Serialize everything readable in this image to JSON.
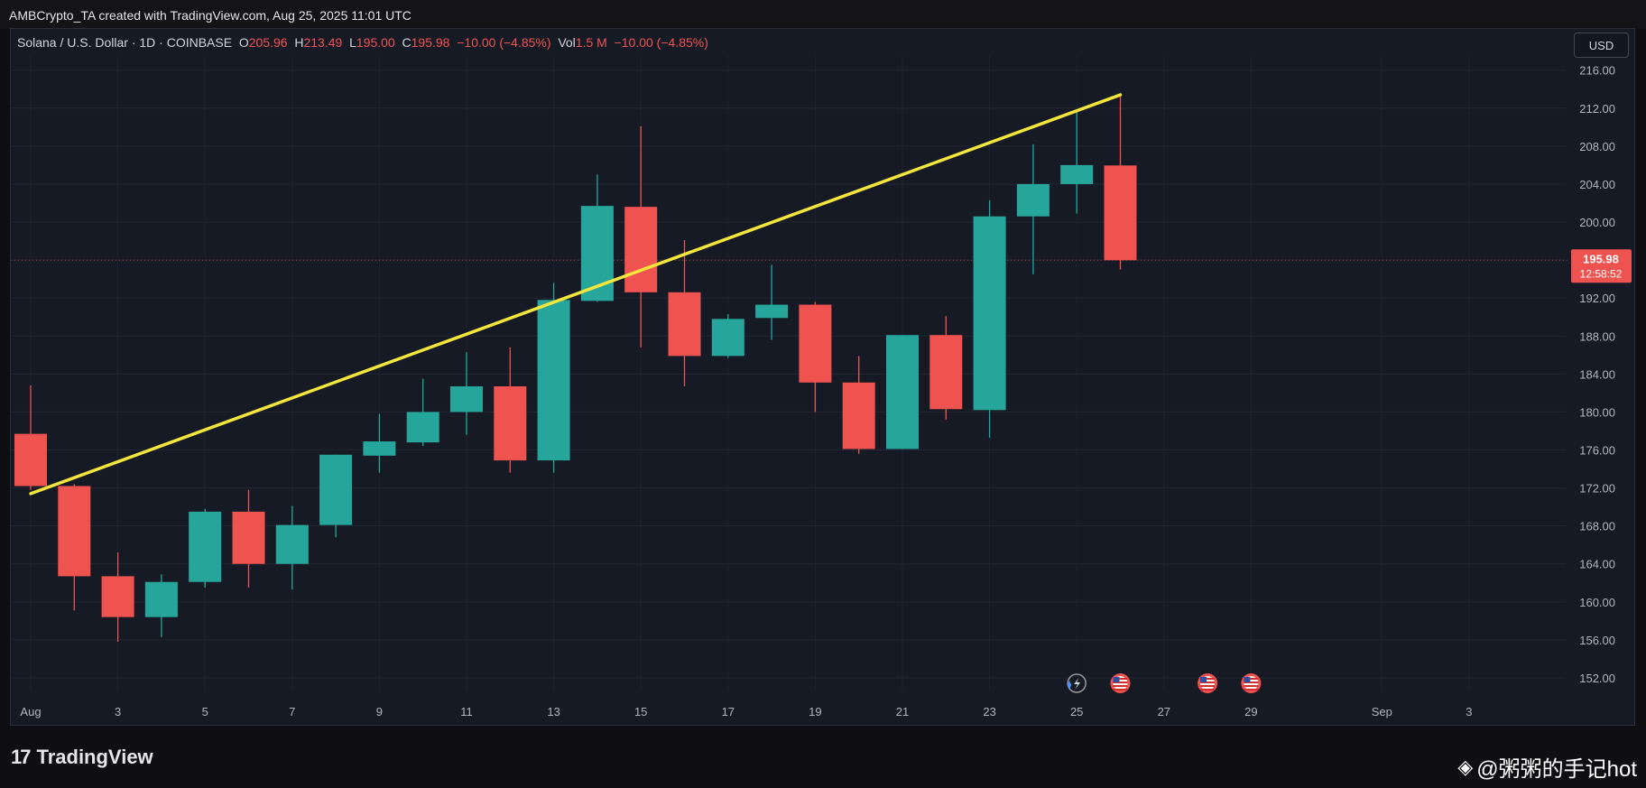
{
  "header": {
    "attribution": "AMBCrypto_TA created with TradingView.com, Aug 25, 2025 11:01 UTC"
  },
  "legend": {
    "symbol": "Solana / U.S. Dollar · 1D · COINBASE",
    "o_label": "O",
    "o_value": "205.96",
    "h_label": "H",
    "h_value": "213.49",
    "l_label": "L",
    "l_value": "195.00",
    "c_label": "C",
    "c_value": "195.98",
    "change": "−10.00 (−4.85%)",
    "vol_label": "Vol",
    "vol_value": "1.5 M",
    "vol_change": "−10.00 (−4.85%)"
  },
  "currency_button": "USD",
  "price_tag": {
    "price": "195.98",
    "countdown": "12:58:52"
  },
  "footer": {
    "brand": "TradingView",
    "watermark": "@粥粥的手记hot"
  },
  "colors": {
    "up": "#26a69a",
    "down": "#ef5350",
    "trendline": "#f5e63c",
    "background": "#161a25"
  },
  "chart_data": {
    "type": "candlestick",
    "ylim": [
      148,
      218
    ],
    "y_ticks": [
      "216.00",
      "212.00",
      "208.00",
      "204.00",
      "200.00",
      "196.00",
      "192.00",
      "188.00",
      "184.00",
      "180.00",
      "176.00",
      "172.00",
      "168.00",
      "164.00",
      "160.00",
      "156.00",
      "152.00"
    ],
    "x_ticks": [
      {
        "label": "Aug",
        "day": 0
      },
      {
        "label": "3",
        "day": 2
      },
      {
        "label": "5",
        "day": 4
      },
      {
        "label": "7",
        "day": 6
      },
      {
        "label": "9",
        "day": 8
      },
      {
        "label": "11",
        "day": 10
      },
      {
        "label": "13",
        "day": 12
      },
      {
        "label": "15",
        "day": 14
      },
      {
        "label": "17",
        "day": 16
      },
      {
        "label": "19",
        "day": 18
      },
      {
        "label": "21",
        "day": 20
      },
      {
        "label": "23",
        "day": 22
      },
      {
        "label": "25",
        "day": 24
      },
      {
        "label": "27",
        "day": 26
      },
      {
        "label": "29",
        "day": 28
      },
      {
        "label": "Sep",
        "day": 31
      },
      {
        "label": "3",
        "day": 33
      }
    ],
    "candles": [
      {
        "date": "Jul 31",
        "open": 177.7,
        "high": 182.8,
        "low": 171.8,
        "close": 172.2
      },
      {
        "date": "Aug 1",
        "open": 172.2,
        "high": 172.4,
        "low": 159.1,
        "close": 162.7
      },
      {
        "date": "Aug 2",
        "open": 162.7,
        "high": 165.2,
        "low": 155.8,
        "close": 158.4
      },
      {
        "date": "Aug 3",
        "open": 158.4,
        "high": 162.9,
        "low": 156.3,
        "close": 162.1
      },
      {
        "date": "Aug 4",
        "open": 162.1,
        "high": 169.8,
        "low": 161.5,
        "close": 169.5
      },
      {
        "date": "Aug 5",
        "open": 169.5,
        "high": 171.8,
        "low": 161.5,
        "close": 164.0
      },
      {
        "date": "Aug 6",
        "open": 164.0,
        "high": 170.1,
        "low": 161.3,
        "close": 168.1
      },
      {
        "date": "Aug 7",
        "open": 168.1,
        "high": 175.5,
        "low": 166.8,
        "close": 175.5
      },
      {
        "date": "Aug 8",
        "open": 175.4,
        "high": 179.8,
        "low": 173.6,
        "close": 176.9
      },
      {
        "date": "Aug 9",
        "open": 176.8,
        "high": 183.5,
        "low": 176.4,
        "close": 180.0
      },
      {
        "date": "Aug 10",
        "open": 180.0,
        "high": 186.3,
        "low": 177.6,
        "close": 182.7
      },
      {
        "date": "Aug 11",
        "open": 182.7,
        "high": 186.8,
        "low": 173.6,
        "close": 174.9
      },
      {
        "date": "Aug 12",
        "open": 174.9,
        "high": 193.6,
        "low": 173.6,
        "close": 191.8
      },
      {
        "date": "Aug 13",
        "open": 191.7,
        "high": 205.0,
        "low": 191.6,
        "close": 201.7
      },
      {
        "date": "Aug 14",
        "open": 201.6,
        "high": 210.1,
        "low": 186.8,
        "close": 192.6
      },
      {
        "date": "Aug 15",
        "open": 192.6,
        "high": 198.1,
        "low": 182.7,
        "close": 185.9
      },
      {
        "date": "Aug 16",
        "open": 185.9,
        "high": 190.3,
        "low": 185.7,
        "close": 189.8
      },
      {
        "date": "Aug 17",
        "open": 189.9,
        "high": 195.5,
        "low": 187.6,
        "close": 191.3
      },
      {
        "date": "Aug 18",
        "open": 191.3,
        "high": 191.6,
        "low": 180.0,
        "close": 183.1
      },
      {
        "date": "Aug 19",
        "open": 183.1,
        "high": 185.9,
        "low": 175.6,
        "close": 176.1
      },
      {
        "date": "Aug 20",
        "open": 176.1,
        "high": 188.1,
        "low": 176.1,
        "close": 188.1
      },
      {
        "date": "Aug 21",
        "open": 188.1,
        "high": 190.1,
        "low": 179.2,
        "close": 180.3
      },
      {
        "date": "Aug 22",
        "open": 180.2,
        "high": 202.3,
        "low": 177.3,
        "close": 200.6
      },
      {
        "date": "Aug 23",
        "open": 200.6,
        "high": 208.2,
        "low": 194.5,
        "close": 204.0
      },
      {
        "date": "Aug 24",
        "open": 204.0,
        "high": 211.8,
        "low": 200.9,
        "close": 206.0
      },
      {
        "date": "Aug 25",
        "open": 205.96,
        "high": 213.49,
        "low": 195.0,
        "close": 195.98
      }
    ],
    "trendline": {
      "start": {
        "date": "Jul 31",
        "price": 171.4
      },
      "end": {
        "date": "Aug 25",
        "price": 213.4
      }
    },
    "event_markers": [
      {
        "date": "Aug 25",
        "icon": "flash-event-icon"
      },
      {
        "date": "Aug 26",
        "icon": "us-flag-icon"
      },
      {
        "date": "Aug 28",
        "icon": "us-flag-icon"
      },
      {
        "date": "Aug 29",
        "icon": "us-flag-icon"
      }
    ]
  }
}
